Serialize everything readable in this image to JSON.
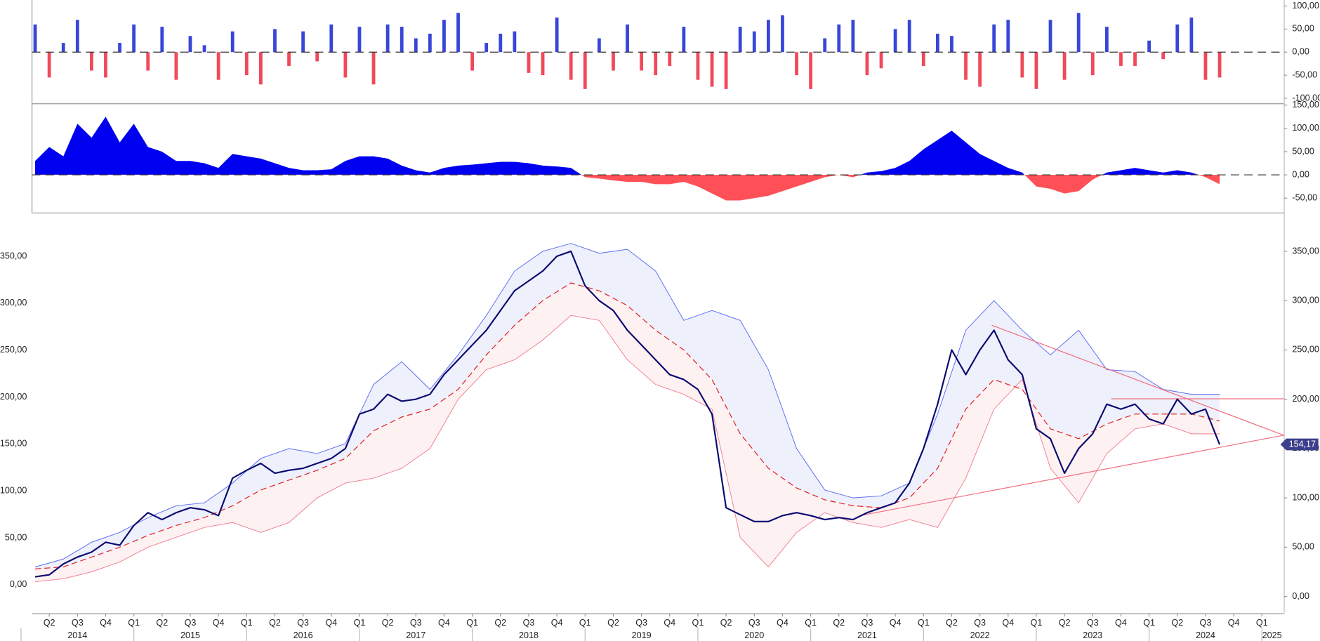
{
  "chart_data": [
    {
      "type": "bar",
      "x": [
        2014.125,
        2014.25,
        2014.375,
        2014.5,
        2014.625,
        2014.75,
        2014.875,
        2015,
        2015.125,
        2015.25,
        2015.375,
        2015.5,
        2015.625,
        2015.75,
        2015.875,
        2016,
        2016.125,
        2016.25,
        2016.375,
        2016.5,
        2016.625,
        2016.75,
        2016.875,
        2017,
        2017.125,
        2017.25,
        2017.375,
        2017.5,
        2017.625,
        2017.75,
        2017.875,
        2018,
        2018.125,
        2018.25,
        2018.375,
        2018.5,
        2018.625,
        2018.75,
        2018.875,
        2019,
        2019.125,
        2019.25,
        2019.375,
        2019.5,
        2019.625,
        2019.75,
        2019.875,
        2020,
        2020.125,
        2020.25,
        2020.375,
        2020.5,
        2020.625,
        2020.75,
        2020.875,
        2021,
        2021.125,
        2021.25,
        2021.375,
        2021.5,
        2021.625,
        2021.75,
        2021.875,
        2022,
        2022.125,
        2022.25,
        2022.375,
        2022.5,
        2022.625,
        2022.75,
        2022.875,
        2023,
        2023.125,
        2023.25,
        2023.375,
        2023.5,
        2023.625,
        2023.75,
        2023.875,
        2024,
        2024.125,
        2024.25,
        2024.375,
        2024.5,
        2024.625
      ],
      "values": [
        60,
        -55,
        20,
        70,
        -40,
        -55,
        20,
        60,
        -40,
        55,
        -60,
        35,
        15,
        -60,
        45,
        -50,
        -70,
        50,
        -30,
        45,
        -20,
        60,
        -55,
        55,
        -70,
        60,
        55,
        30,
        40,
        70,
        85,
        -40,
        20,
        40,
        45,
        -45,
        -50,
        75,
        -60,
        -80,
        30,
        -40,
        60,
        -40,
        -50,
        -30,
        55,
        -60,
        -75,
        -80,
        55,
        45,
        70,
        80,
        -50,
        -80,
        30,
        60,
        70,
        -50,
        -35,
        50,
        70,
        -30,
        40,
        35,
        -60,
        -75,
        60,
        70,
        -55,
        -80,
        70,
        -60,
        85,
        -50,
        55,
        -30,
        -30,
        25,
        -15,
        60,
        75,
        -60,
        -55
      ],
      "positive_color": "#3846d8",
      "negative_color": "#f04a5a",
      "ylim": [
        -111,
        113
      ],
      "yticks": [
        {
          "value": 100,
          "label": "100,00"
        },
        {
          "value": 50,
          "label": "50,00"
        },
        {
          "value": 0,
          "label": "0,00"
        },
        {
          "value": -50,
          "label": "-50,00"
        },
        {
          "value": -100,
          "label": "-100,00"
        }
      ]
    },
    {
      "type": "area",
      "x": [
        2014.125,
        2014.25,
        2014.375,
        2014.5,
        2014.625,
        2014.75,
        2014.875,
        2015,
        2015.125,
        2015.25,
        2015.375,
        2015.5,
        2015.625,
        2015.75,
        2015.875,
        2016,
        2016.125,
        2016.25,
        2016.375,
        2016.5,
        2016.625,
        2016.75,
        2016.875,
        2017,
        2017.125,
        2017.25,
        2017.375,
        2017.5,
        2017.625,
        2017.75,
        2017.875,
        2018,
        2018.125,
        2018.25,
        2018.375,
        2018.5,
        2018.625,
        2018.75,
        2018.875,
        2019,
        2019.125,
        2019.25,
        2019.375,
        2019.5,
        2019.625,
        2019.75,
        2019.875,
        2020,
        2020.125,
        2020.25,
        2020.375,
        2020.5,
        2020.625,
        2020.75,
        2020.875,
        2021,
        2021.125,
        2021.25,
        2021.375,
        2021.5,
        2021.625,
        2021.75,
        2021.875,
        2022,
        2022.125,
        2022.25,
        2022.375,
        2022.5,
        2022.625,
        2022.75,
        2022.875,
        2023,
        2023.125,
        2023.25,
        2023.375,
        2023.5,
        2023.625,
        2023.75,
        2023.875,
        2024,
        2024.125,
        2024.25,
        2024.375,
        2024.5,
        2024.625
      ],
      "values": [
        30,
        60,
        40,
        110,
        80,
        125,
        70,
        110,
        60,
        50,
        30,
        30,
        25,
        15,
        45,
        40,
        35,
        25,
        15,
        10,
        10,
        12,
        30,
        40,
        40,
        35,
        20,
        10,
        5,
        15,
        20,
        22,
        25,
        28,
        28,
        25,
        20,
        18,
        15,
        -5,
        -8,
        -12,
        -15,
        -15,
        -20,
        -20,
        -15,
        -25,
        -40,
        -55,
        -55,
        -50,
        -45,
        -35,
        -25,
        -15,
        -5,
        0,
        -5,
        5,
        8,
        15,
        30,
        55,
        75,
        95,
        70,
        45,
        30,
        15,
        5,
        -25,
        -30,
        -40,
        -35,
        -10,
        5,
        10,
        15,
        10,
        5,
        10,
        5,
        -5,
        -20
      ],
      "positive_color": "#0000f0",
      "negative_color": "#ff5058",
      "ylim": [
        -81,
        152
      ],
      "yticks": [
        {
          "value": 150,
          "label": "150,00"
        },
        {
          "value": 100,
          "label": "100,00"
        },
        {
          "value": 50,
          "label": "50,00"
        },
        {
          "value": 0,
          "label": "0,00"
        },
        {
          "value": -50,
          "label": "-50,00"
        }
      ]
    },
    {
      "type": "line",
      "xlim": [
        2014.097,
        2025.194
      ],
      "ylim": [
        -17,
        389.3
      ],
      "y2lim": [
        -30.4,
        396.6
      ],
      "price": {
        "color": "#0a0a70",
        "x": [
          2014.125,
          2014.25,
          2014.375,
          2014.5,
          2014.625,
          2014.75,
          2014.875,
          2015,
          2015.125,
          2015.25,
          2015.375,
          2015.5,
          2015.625,
          2015.75,
          2015.875,
          2016,
          2016.125,
          2016.25,
          2016.375,
          2016.5,
          2016.625,
          2016.75,
          2016.875,
          2017,
          2017.125,
          2017.25,
          2017.375,
          2017.5,
          2017.625,
          2017.75,
          2017.875,
          2018,
          2018.125,
          2018.25,
          2018.375,
          2018.5,
          2018.625,
          2018.75,
          2018.875,
          2019,
          2019.125,
          2019.25,
          2019.375,
          2019.5,
          2019.625,
          2019.75,
          2019.875,
          2020,
          2020.125,
          2020.25,
          2020.375,
          2020.5,
          2020.625,
          2020.75,
          2020.875,
          2021,
          2021.125,
          2021.25,
          2021.375,
          2021.5,
          2021.625,
          2021.75,
          2021.875,
          2022,
          2022.125,
          2022.25,
          2022.375,
          2022.5,
          2022.625,
          2022.75,
          2022.875,
          2023,
          2023.125,
          2023.25,
          2023.375,
          2023.5,
          2023.625,
          2023.75,
          2023.875,
          2024,
          2024.125,
          2024.25,
          2024.375,
          2024.5,
          2024.625
        ],
        "values": [
          20,
          22,
          33,
          40,
          45,
          55,
          52,
          72,
          85,
          78,
          85,
          90,
          88,
          82,
          120,
          128,
          135,
          125,
          128,
          130,
          135,
          140,
          150,
          185,
          190,
          205,
          198,
          200,
          205,
          225,
          240,
          255,
          270,
          290,
          310,
          320,
          330,
          345,
          350,
          315,
          300,
          290,
          270,
          255,
          240,
          225,
          220,
          210,
          185,
          90,
          83,
          76,
          76,
          82,
          85,
          82,
          78,
          80,
          78,
          85,
          90,
          95,
          115,
          150,
          195,
          250,
          225,
          250,
          270,
          240,
          225,
          170,
          160,
          125,
          150,
          165,
          195,
          190,
          195,
          180,
          175,
          200,
          185,
          190,
          154.17
        ]
      },
      "band_x": [
        2014.125,
        2014.375,
        2014.625,
        2014.875,
        2015.125,
        2015.375,
        2015.625,
        2015.875,
        2016.125,
        2016.375,
        2016.625,
        2016.875,
        2017.125,
        2017.375,
        2017.625,
        2017.875,
        2018.125,
        2018.375,
        2018.625,
        2018.875,
        2019.125,
        2019.375,
        2019.625,
        2019.875,
        2020.125,
        2020.375,
        2020.625,
        2020.875,
        2021.125,
        2021.375,
        2021.625,
        2021.875,
        2022.125,
        2022.375,
        2022.625,
        2022.875,
        2023.125,
        2023.375,
        2023.625,
        2023.875,
        2024.125,
        2024.375,
        2024.625
      ],
      "upper_band": {
        "color": "#5a6cf0",
        "fill": "#eef0fc",
        "values": [
          30,
          38,
          55,
          65,
          80,
          92,
          95,
          115,
          140,
          150,
          145,
          155,
          215,
          238,
          210,
          245,
          285,
          330,
          350,
          358,
          348,
          352,
          330,
          280,
          290,
          280,
          230,
          150,
          108,
          100,
          102,
          115,
          185,
          270,
          300,
          270,
          245,
          270,
          230,
          228,
          210,
          205,
          205
        ]
      },
      "moving_average": {
        "color": "#e02020",
        "values": [
          28,
          30,
          40,
          50,
          62,
          72,
          80,
          92,
          108,
          118,
          128,
          140,
          168,
          182,
          190,
          210,
          245,
          275,
          300,
          318,
          310,
          295,
          270,
          250,
          220,
          165,
          130,
          110,
          98,
          92,
          90,
          100,
          130,
          190,
          220,
          210,
          170,
          160,
          175,
          185,
          185,
          185,
          178
        ]
      },
      "lower_band": {
        "color": "#f08090",
        "fill": "#fdf1f2",
        "values": [
          15,
          18,
          25,
          35,
          50,
          60,
          70,
          75,
          65,
          75,
          100,
          115,
          120,
          130,
          150,
          200,
          230,
          240,
          260,
          285,
          280,
          240,
          215,
          205,
          190,
          60,
          30,
          65,
          85,
          75,
          70,
          78,
          70,
          120,
          190,
          220,
          130,
          95,
          145,
          170,
          175,
          165,
          165
        ]
      },
      "trendlines": [
        {
          "color": "#f07080",
          "x": [
            2022.605,
            2025.194
          ],
          "values": [
            275.1,
            163.5
          ]
        },
        {
          "color": "#f07080",
          "x": [
            2021.463,
            2025.194
          ],
          "values": [
            82.6,
            163.5
          ]
        },
        {
          "color": "#f07080",
          "x": [
            2023.664,
            2025.194
          ],
          "values": [
            200.5,
            200.5
          ]
        }
      ],
      "price_tag": {
        "value": 154.17,
        "label": "154,17",
        "color": "#3c3f8c"
      },
      "yticks": [
        {
          "value": 350,
          "label": "350,00"
        },
        {
          "value": 300,
          "label": "300,00"
        },
        {
          "value": 250,
          "label": "250,00"
        },
        {
          "value": 200,
          "label": "200,00"
        },
        {
          "value": 150,
          "label": "150,00"
        },
        {
          "value": 100,
          "label": "100,00"
        },
        {
          "value": 50,
          "label": "50,00"
        },
        {
          "value": 0,
          "label": "0,00"
        }
      ],
      "y2ticks": [
        {
          "value": 350,
          "label": "350,00"
        },
        {
          "value": 300,
          "label": "300,00"
        },
        {
          "value": 250,
          "label": "250,00"
        },
        {
          "value": 200,
          "label": "200,00"
        },
        {
          "value": 150,
          "label": "150,00"
        },
        {
          "value": 100,
          "label": "100,00"
        },
        {
          "value": 50,
          "label": "50,00"
        },
        {
          "value": 0,
          "label": "0,00"
        }
      ],
      "xticks": [
        {
          "value": 2014.25,
          "label": "Q2"
        },
        {
          "value": 2014.5,
          "label": "Q3"
        },
        {
          "value": 2014.75,
          "label": "Q4"
        },
        {
          "value": 2015,
          "label": "Q1"
        },
        {
          "value": 2015.25,
          "label": "Q2"
        },
        {
          "value": 2015.5,
          "label": "Q3"
        },
        {
          "value": 2015.75,
          "label": "Q4"
        },
        {
          "value": 2016,
          "label": "Q1"
        },
        {
          "value": 2016.25,
          "label": "Q2"
        },
        {
          "value": 2016.5,
          "label": "Q3"
        },
        {
          "value": 2016.75,
          "label": "Q4"
        },
        {
          "value": 2017,
          "label": "Q1"
        },
        {
          "value": 2017.25,
          "label": "Q2"
        },
        {
          "value": 2017.5,
          "label": "Q3"
        },
        {
          "value": 2017.75,
          "label": "Q4"
        },
        {
          "value": 2018,
          "label": "Q1"
        },
        {
          "value": 2018.25,
          "label": "Q2"
        },
        {
          "value": 2018.5,
          "label": "Q3"
        },
        {
          "value": 2018.75,
          "label": "Q4"
        },
        {
          "value": 2019,
          "label": "Q1"
        },
        {
          "value": 2019.25,
          "label": "Q2"
        },
        {
          "value": 2019.5,
          "label": "Q3"
        },
        {
          "value": 2019.75,
          "label": "Q4"
        },
        {
          "value": 2020,
          "label": "Q1"
        },
        {
          "value": 2020.25,
          "label": "Q2"
        },
        {
          "value": 2020.5,
          "label": "Q3"
        },
        {
          "value": 2020.75,
          "label": "Q4"
        },
        {
          "value": 2021,
          "label": "Q1"
        },
        {
          "value": 2021.25,
          "label": "Q2"
        },
        {
          "value": 2021.5,
          "label": "Q3"
        },
        {
          "value": 2021.75,
          "label": "Q4"
        },
        {
          "value": 2022,
          "label": "Q1"
        },
        {
          "value": 2022.25,
          "label": "Q2"
        },
        {
          "value": 2022.5,
          "label": "Q3"
        },
        {
          "value": 2022.75,
          "label": "Q4"
        },
        {
          "value": 2023,
          "label": "Q1"
        },
        {
          "value": 2023.25,
          "label": "Q2"
        },
        {
          "value": 2023.5,
          "label": "Q3"
        },
        {
          "value": 2023.75,
          "label": "Q4"
        },
        {
          "value": 2024,
          "label": "Q1"
        },
        {
          "value": 2024.25,
          "label": "Q2"
        },
        {
          "value": 2024.5,
          "label": "Q3"
        },
        {
          "value": 2024.75,
          "label": "Q4"
        },
        {
          "value": 2025,
          "label": "Q1"
        }
      ],
      "year_ticks": [
        {
          "value": 2014.5,
          "label": "2014"
        },
        {
          "value": 2015.5,
          "label": "2015"
        },
        {
          "value": 2016.5,
          "label": "2016"
        },
        {
          "value": 2017.5,
          "label": "2017"
        },
        {
          "value": 2018.5,
          "label": "2018"
        },
        {
          "value": 2019.5,
          "label": "2019"
        },
        {
          "value": 2020.5,
          "label": "2020"
        },
        {
          "value": 2021.5,
          "label": "2021"
        },
        {
          "value": 2022.5,
          "label": "2022"
        },
        {
          "value": 2023.5,
          "label": "2023"
        },
        {
          "value": 2024.5,
          "label": "2024"
        },
        {
          "value": 2025.5,
          "label": "2025"
        }
      ]
    }
  ]
}
